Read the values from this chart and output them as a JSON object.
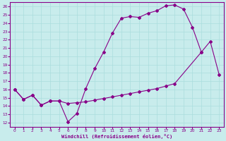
{
  "xlabel": "Windchill (Refroidissement éolien,°C)",
  "bg_color": "#c8ecec",
  "line_color": "#880088",
  "grid_color": "#aadddd",
  "xlim": [
    -0.5,
    23.5
  ],
  "ylim": [
    11.5,
    26.5
  ],
  "xticks": [
    0,
    1,
    2,
    3,
    4,
    5,
    6,
    7,
    8,
    9,
    10,
    11,
    12,
    13,
    14,
    15,
    16,
    17,
    18,
    19,
    20,
    21,
    22,
    23
  ],
  "yticks": [
    12,
    13,
    14,
    15,
    16,
    17,
    18,
    19,
    20,
    21,
    22,
    23,
    24,
    25,
    26
  ],
  "line1_x": [
    0,
    1,
    2,
    3,
    4,
    5,
    6,
    7,
    8,
    9,
    10,
    11,
    12,
    13,
    14,
    15,
    16,
    17,
    18,
    19,
    20,
    21
  ],
  "line1_y": [
    16.0,
    14.8,
    15.3,
    14.1,
    14.6,
    14.6,
    12.1,
    13.1,
    16.1,
    18.5,
    20.5,
    22.8,
    24.6,
    24.8,
    24.7,
    25.2,
    25.5,
    26.1,
    26.2,
    25.7,
    23.5,
    20.5
  ],
  "line2_x": [
    0,
    1,
    2,
    3,
    4,
    5,
    6,
    7,
    8,
    9,
    10,
    11,
    12,
    13,
    14,
    15,
    16,
    17,
    18,
    21,
    22,
    23
  ],
  "line2_y": [
    16.0,
    14.8,
    15.3,
    14.1,
    14.6,
    14.6,
    14.3,
    14.4,
    14.5,
    14.7,
    14.9,
    15.1,
    15.3,
    15.5,
    15.7,
    15.9,
    16.1,
    16.4,
    16.7,
    20.5,
    21.8,
    17.8
  ]
}
